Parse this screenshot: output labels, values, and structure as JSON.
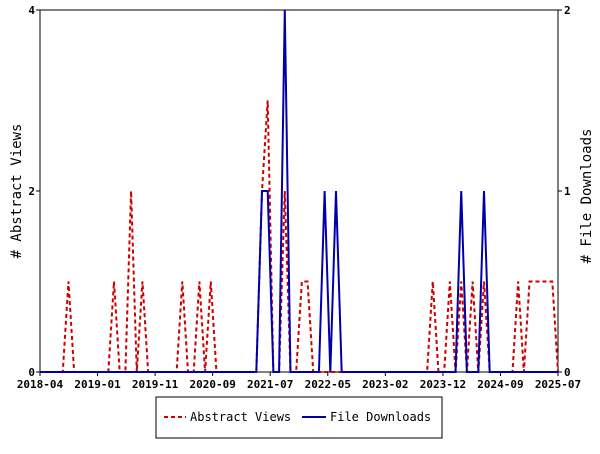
{
  "chart_data": {
    "type": "line",
    "x_tick_labels": [
      "2018-04",
      "2019-01",
      "2019-11",
      "2020-09",
      "2021-07",
      "2022-05",
      "2023-02",
      "2023-12",
      "2024-09",
      "2025-07"
    ],
    "ylabel_left": "# Abstract Views",
    "ylabel_right": "# File Downloads",
    "ylim_left": [
      0,
      4
    ],
    "ylim_right": [
      0,
      2
    ],
    "yticks_left": [
      "0",
      "2",
      "4"
    ],
    "yticks_right": [
      "0",
      "1",
      "2"
    ],
    "grid": false,
    "legend_position": "bottom-center",
    "series": [
      {
        "name": "Abstract Views",
        "axis": "left",
        "color": "#cc0000",
        "line_style": "dashed",
        "monthly_values": [
          0,
          0,
          0,
          0,
          0,
          1,
          0,
          0,
          0,
          0,
          0,
          0,
          0,
          1,
          0,
          0,
          2,
          0,
          1,
          0,
          0,
          0,
          0,
          0,
          0,
          1,
          0,
          0,
          1,
          0,
          1,
          0,
          0,
          0,
          0,
          0,
          0,
          0,
          0,
          2,
          3,
          0,
          0,
          2,
          0,
          0,
          1,
          1,
          0,
          0,
          0,
          0,
          0,
          0,
          0,
          0,
          0,
          0,
          0,
          0,
          0,
          0,
          0,
          0,
          0,
          0,
          0,
          0,
          0,
          1,
          0,
          0,
          1,
          0,
          1,
          0,
          1,
          0,
          1,
          0,
          0,
          0,
          0,
          0,
          1,
          0,
          1,
          1,
          1,
          1,
          1,
          0
        ]
      },
      {
        "name": "File Downloads",
        "axis": "right",
        "color": "#0000aa",
        "line_style": "solid",
        "monthly_values": [
          0,
          0,
          0,
          0,
          0,
          0,
          0,
          0,
          0,
          0,
          0,
          0,
          0,
          0,
          0,
          0,
          0,
          0,
          0,
          0,
          0,
          0,
          0,
          0,
          0,
          0,
          0,
          0,
          0,
          0,
          0,
          0,
          0,
          0,
          0,
          0,
          0,
          0,
          0,
          1,
          1,
          0,
          0,
          2,
          0,
          0,
          0,
          0,
          0,
          0,
          1,
          0,
          1,
          0,
          0,
          0,
          0,
          0,
          0,
          0,
          0,
          0,
          0,
          0,
          0,
          0,
          0,
          0,
          0,
          0,
          0,
          0,
          0,
          0,
          1,
          0,
          0,
          0,
          1,
          0,
          0,
          0,
          0,
          0,
          0,
          0,
          0,
          0,
          0,
          0,
          0,
          0
        ]
      }
    ]
  }
}
